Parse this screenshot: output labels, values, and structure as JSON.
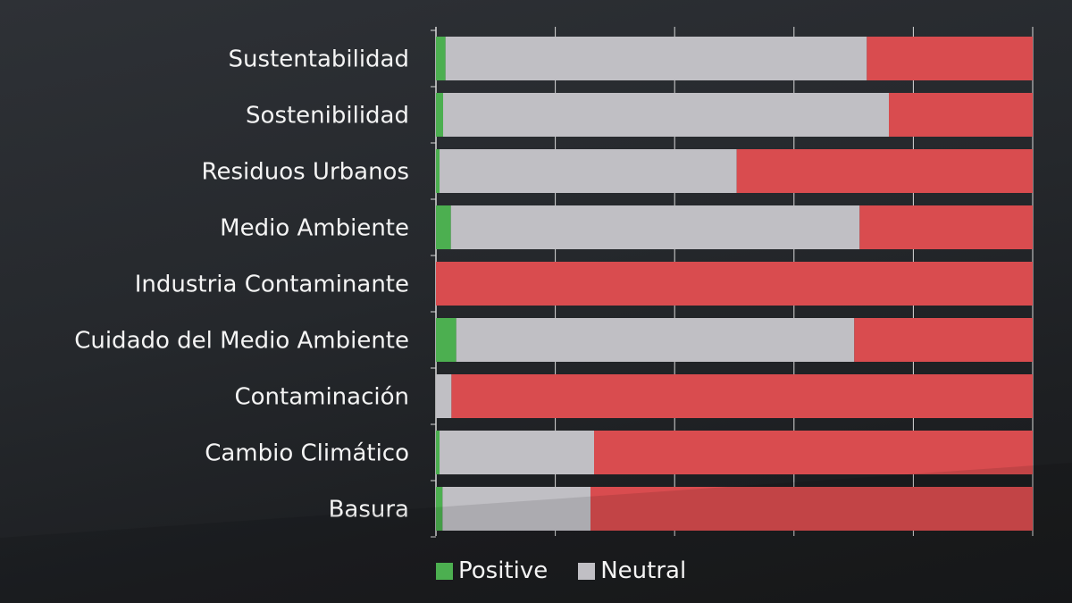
{
  "chart_data": {
    "type": "bar",
    "orientation": "horizontal",
    "stacked": true,
    "normalized": true,
    "categories": [
      "Sustentabilidad",
      "Sostenibilidad",
      "Residuos Urbanos",
      "Medio Ambiente",
      "Industria Contaminante",
      "Cuidado del Medio Ambiente",
      "Contaminación",
      "Cambio Climático",
      "Basura"
    ],
    "series": [
      {
        "name": "Positive",
        "color": "#4caf50",
        "values": [
          1.6,
          1.2,
          0.6,
          2.5,
          0.0,
          3.4,
          0.0,
          0.6,
          1.1
        ]
      },
      {
        "name": "Neutral",
        "color": "#c0bfc4",
        "values": [
          70.6,
          74.7,
          49.8,
          68.5,
          0.0,
          66.7,
          2.6,
          25.9,
          24.8
        ]
      },
      {
        "name": "",
        "color": "#d94c4f",
        "values": [
          27.8,
          24.1,
          49.6,
          29.0,
          100.0,
          29.9,
          97.4,
          73.5,
          74.1
        ]
      }
    ],
    "xlim": [
      0,
      100
    ],
    "x_grid_ticks": [
      0,
      20,
      40,
      60,
      80,
      100
    ],
    "grid": true,
    "legend_position": "bottom",
    "title": "",
    "xlabel": "",
    "ylabel": ""
  }
}
